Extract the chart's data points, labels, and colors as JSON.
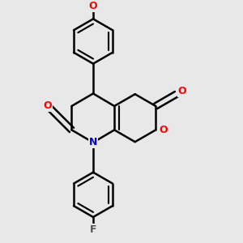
{
  "background_color": "#e8e8e8",
  "line_color": "#000000",
  "bond_width": 1.8,
  "atom_colors": {
    "O": "#ff0000",
    "N": "#0000cd",
    "F": "#555555"
  },
  "figsize": [
    3.0,
    3.0
  ],
  "dpi": 100
}
